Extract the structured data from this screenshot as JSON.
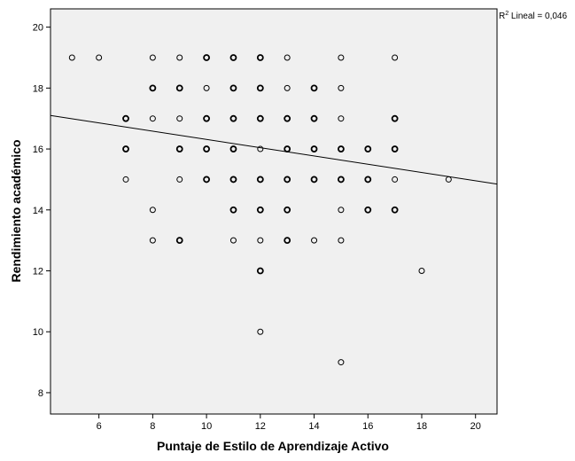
{
  "chart_data": {
    "type": "scatter",
    "title": "",
    "xlabel": "Puntaje de Estilo de Aprendizaje Activo",
    "ylabel": "Rendimiento académico",
    "xlim": [
      4.2,
      20.8
    ],
    "ylim": [
      7.3,
      20.6
    ],
    "x_ticks": [
      6,
      8,
      10,
      12,
      14,
      16,
      18,
      20
    ],
    "y_ticks": [
      8,
      10,
      12,
      14,
      16,
      18,
      20
    ],
    "grid": false,
    "fit_line": {
      "label_prefix": "R",
      "label_exponent": "2",
      "label_text": " Lineal = 0,046",
      "x": [
        4.2,
        20.8
      ],
      "y": [
        17.1,
        14.85
      ]
    },
    "points": {
      "x": [
        5,
        6,
        8,
        9,
        10,
        11,
        12,
        13,
        15,
        17,
        8,
        9,
        10,
        11,
        12,
        13,
        14,
        15,
        7,
        8,
        9,
        10,
        11,
        12,
        13,
        14,
        15,
        17,
        7,
        9,
        10,
        11,
        12,
        13,
        14,
        15,
        16,
        17,
        7,
        9,
        10,
        11,
        12,
        13,
        14,
        15,
        16,
        17,
        19,
        8,
        11,
        12,
        13,
        15,
        16,
        17,
        8,
        9,
        11,
        12,
        13,
        14,
        15,
        12,
        18,
        12,
        15
      ],
      "y": [
        19,
        19,
        19,
        19,
        19,
        19,
        19,
        19,
        19,
        19,
        18,
        18,
        18,
        18,
        18,
        18,
        18,
        18,
        17,
        17,
        17,
        17,
        17,
        17,
        17,
        17,
        17,
        17,
        16,
        16,
        16,
        16,
        16,
        16,
        16,
        16,
        16,
        16,
        15,
        15,
        15,
        15,
        15,
        15,
        15,
        15,
        15,
        15,
        15,
        14,
        14,
        14,
        14,
        14,
        14,
        14,
        13,
        13,
        13,
        13,
        13,
        13,
        13,
        12,
        12,
        10,
        9
      ],
      "weight": [
        1,
        1,
        1,
        1,
        2,
        2,
        2,
        1,
        1,
        1,
        2,
        2,
        1,
        2,
        2,
        1,
        2,
        1,
        2,
        1,
        1,
        2,
        2,
        2,
        2,
        2,
        1,
        2,
        2,
        2,
        2,
        2,
        1,
        2,
        2,
        2,
        2,
        2,
        1,
        1,
        2,
        2,
        2,
        2,
        2,
        2,
        2,
        1,
        1,
        1,
        2,
        2,
        2,
        1,
        2,
        2,
        1,
        2,
        1,
        1,
        2,
        1,
        1,
        2,
        1,
        1,
        1
      ]
    }
  }
}
